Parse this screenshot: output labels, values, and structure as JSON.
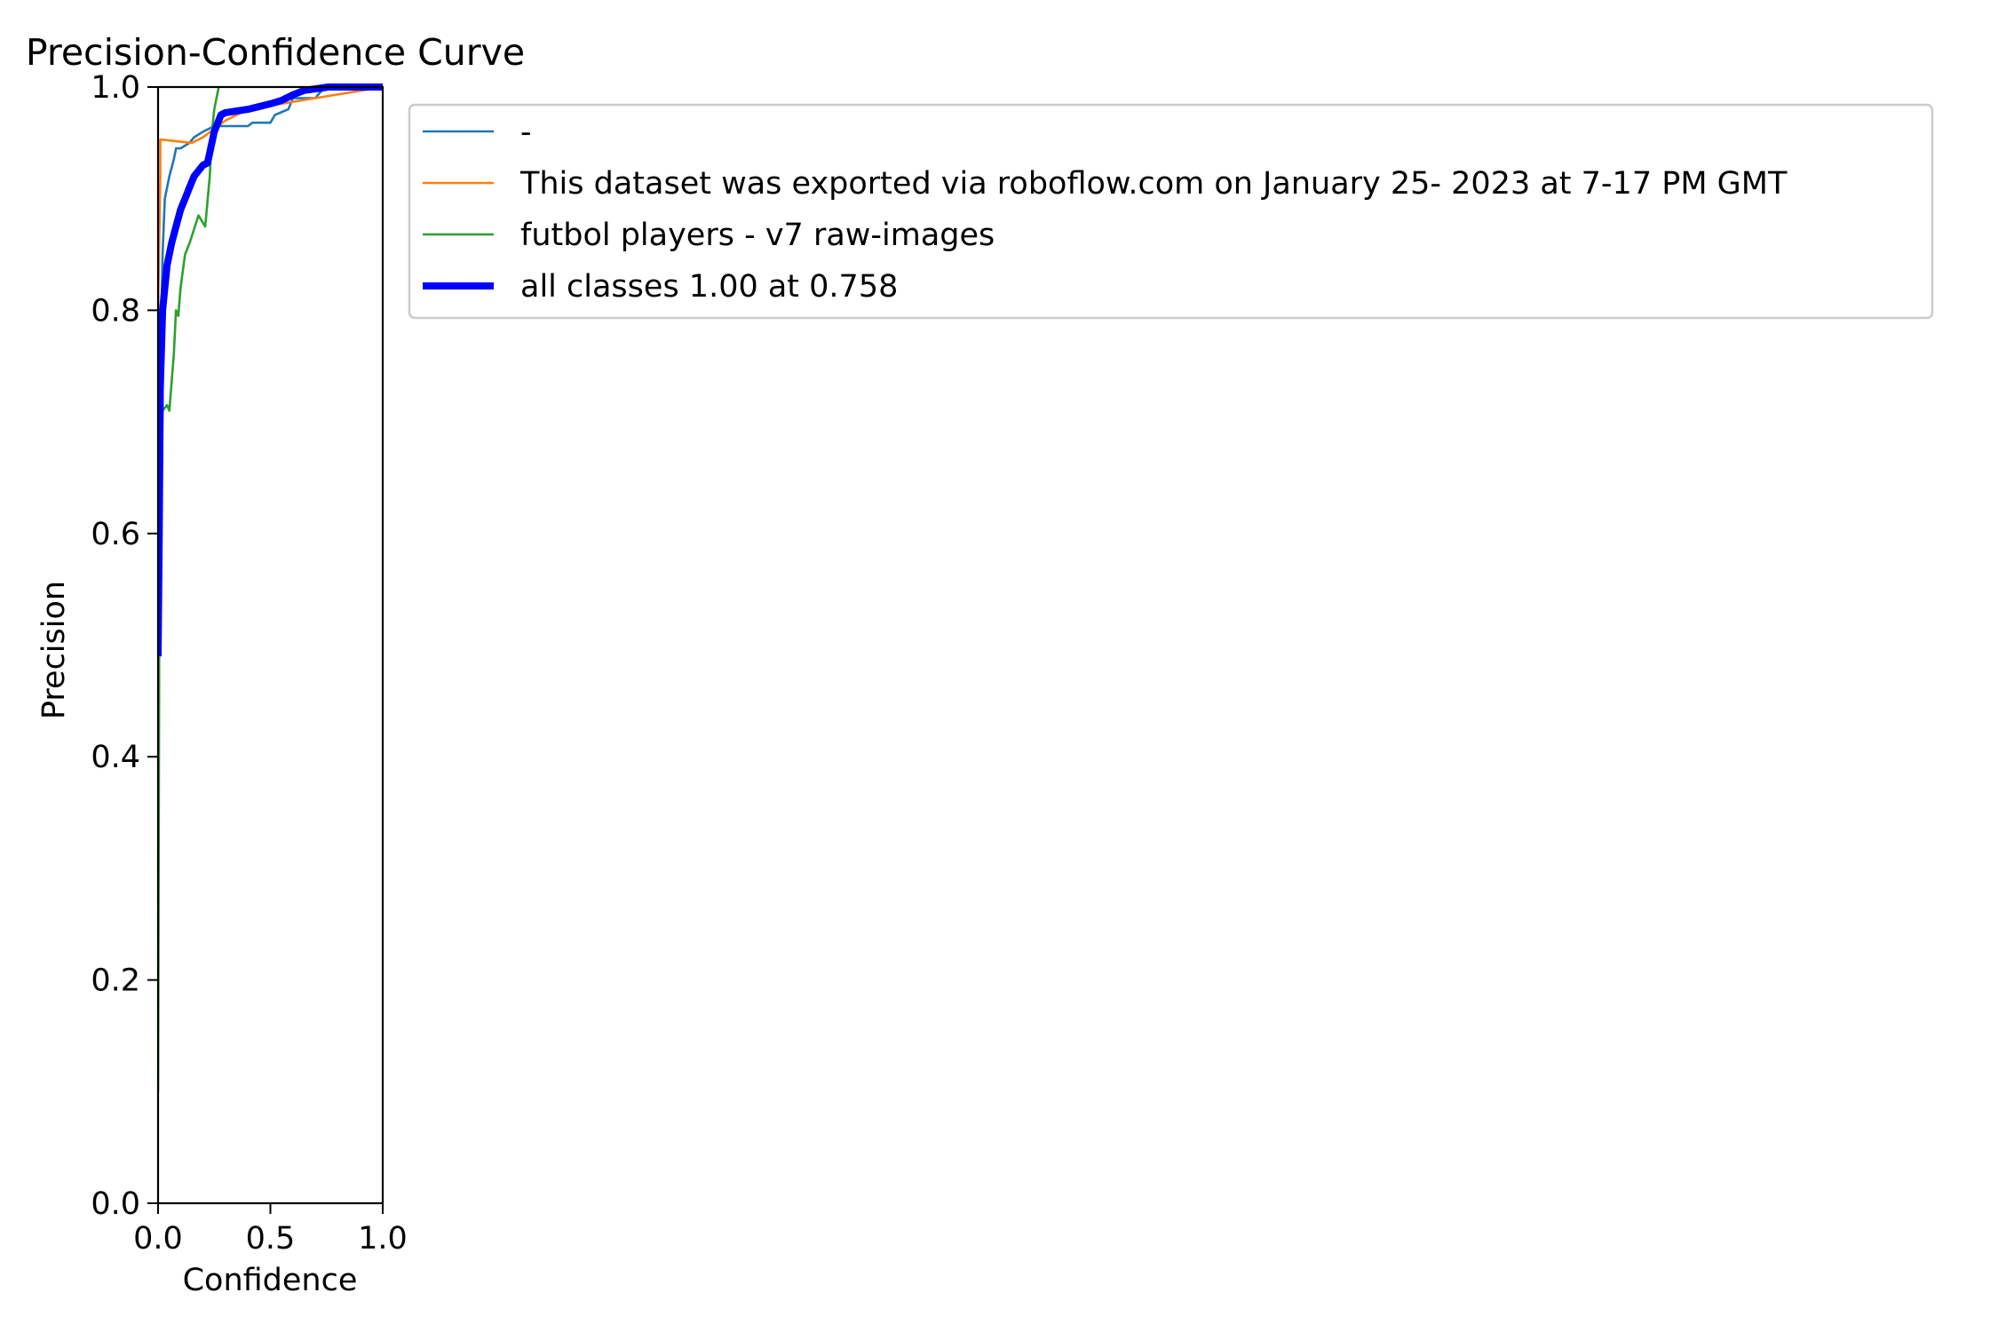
{
  "chart_data": {
    "type": "line",
    "title": "Precision-Confidence Curve",
    "xlabel": "Confidence",
    "ylabel": "Precision",
    "xlim": [
      0,
      1
    ],
    "ylim": [
      0,
      1
    ],
    "xticks": [
      "0.0",
      "0.5",
      "1.0"
    ],
    "yticks": [
      "0.0",
      "0.2",
      "0.4",
      "0.6",
      "0.8",
      "1.0"
    ],
    "grid": false,
    "legend_position": "outside-right-top",
    "series": [
      {
        "name": "-",
        "color": "#1f77b4",
        "x": [
          0.0,
          0.005,
          0.01,
          0.02,
          0.03,
          0.05,
          0.07,
          0.08,
          0.1,
          0.14,
          0.16,
          0.2,
          0.25,
          0.3,
          0.4,
          0.42,
          0.5,
          0.52,
          0.58,
          0.6,
          0.65,
          0.7,
          0.72,
          0.75,
          1.0
        ],
        "y": [
          0.3,
          0.6,
          0.75,
          0.85,
          0.9,
          0.92,
          0.935,
          0.945,
          0.945,
          0.95,
          0.955,
          0.96,
          0.965,
          0.965,
          0.965,
          0.968,
          0.968,
          0.975,
          0.98,
          0.99,
          0.99,
          0.99,
          0.995,
          1.0,
          1.0
        ]
      },
      {
        "name": "This dataset was exported via roboflow.com on January 25- 2023 at 7-17 PM GMT",
        "color": "#ff7f0e",
        "x": [
          0.0,
          0.01,
          0.01,
          0.15,
          0.2,
          0.3,
          0.4,
          1.0
        ],
        "y": [
          0.8,
          0.92,
          0.953,
          0.95,
          0.955,
          0.97,
          0.98,
          1.0
        ]
      },
      {
        "name": "futbol players - v7 raw-images",
        "color": "#2ca02c",
        "x": [
          0.0,
          0.005,
          0.01,
          0.02,
          0.04,
          0.05,
          0.07,
          0.08,
          0.09,
          0.1,
          0.12,
          0.14,
          0.18,
          0.21,
          0.23,
          0.24,
          0.25,
          0.27
        ],
        "y": [
          0.1,
          0.5,
          0.65,
          0.71,
          0.715,
          0.71,
          0.76,
          0.8,
          0.795,
          0.82,
          0.85,
          0.86,
          0.885,
          0.875,
          0.92,
          0.96,
          0.98,
          1.0
        ]
      },
      {
        "name": "all classes 1.00 at 0.758",
        "color": "#0000ff",
        "x": [
          0.0,
          0.005,
          0.01,
          0.02,
          0.04,
          0.06,
          0.08,
          0.1,
          0.12,
          0.14,
          0.16,
          0.18,
          0.2,
          0.22,
          0.25,
          0.28,
          0.3,
          0.4,
          0.5,
          0.55,
          0.6,
          0.65,
          0.758,
          1.0
        ],
        "y": [
          0.49,
          0.6,
          0.73,
          0.8,
          0.84,
          0.86,
          0.875,
          0.89,
          0.9,
          0.91,
          0.92,
          0.925,
          0.93,
          0.932,
          0.96,
          0.975,
          0.977,
          0.98,
          0.985,
          0.988,
          0.993,
          0.997,
          1.0,
          1.0
        ]
      }
    ]
  }
}
